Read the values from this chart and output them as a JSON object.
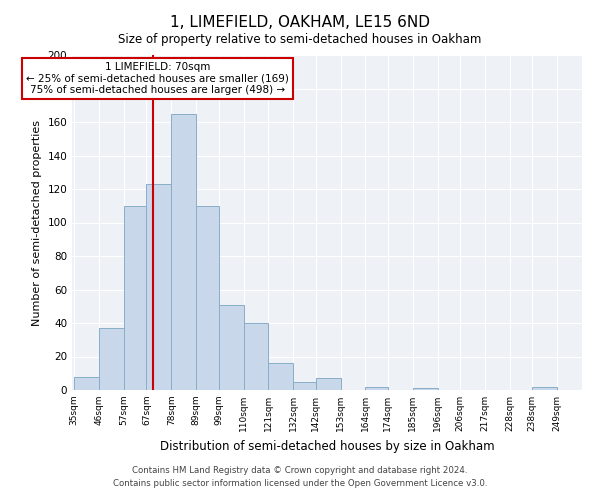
{
  "title": "1, LIMEFIELD, OAKHAM, LE15 6ND",
  "subtitle": "Size of property relative to semi-detached houses in Oakham",
  "xlabel": "Distribution of semi-detached houses by size in Oakham",
  "ylabel": "Number of semi-detached properties",
  "bin_labels": [
    "35sqm",
    "46sqm",
    "57sqm",
    "67sqm",
    "78sqm",
    "89sqm",
    "99sqm",
    "110sqm",
    "121sqm",
    "132sqm",
    "142sqm",
    "153sqm",
    "164sqm",
    "174sqm",
    "185sqm",
    "196sqm",
    "206sqm",
    "217sqm",
    "228sqm",
    "238sqm",
    "249sqm"
  ],
  "bin_edges": [
    35,
    46,
    57,
    67,
    78,
    89,
    99,
    110,
    121,
    132,
    142,
    153,
    164,
    174,
    185,
    196,
    206,
    217,
    228,
    238,
    249
  ],
  "counts": [
    8,
    37,
    110,
    123,
    165,
    110,
    51,
    40,
    16,
    5,
    7,
    0,
    2,
    0,
    1,
    0,
    0,
    0,
    0,
    2
  ],
  "bar_color": "#c8d8ea",
  "bar_edge_color": "#8aaec8",
  "vline_x": 70,
  "vline_color": "#cc0000",
  "annotation_line1": "1 LIMEFIELD: 70sqm",
  "annotation_line2": "← 25% of semi-detached houses are smaller (169)",
  "annotation_line3": "75% of semi-detached houses are larger (498) →",
  "annotation_box_color": "white",
  "annotation_box_edge": "#cc0000",
  "ylim": [
    0,
    200
  ],
  "yticks": [
    0,
    20,
    40,
    60,
    80,
    100,
    120,
    140,
    160,
    180,
    200
  ],
  "background_color": "#eef2f7",
  "grid_color": "#ffffff",
  "footer_line1": "Contains HM Land Registry data © Crown copyright and database right 2024.",
  "footer_line2": "Contains public sector information licensed under the Open Government Licence v3.0."
}
